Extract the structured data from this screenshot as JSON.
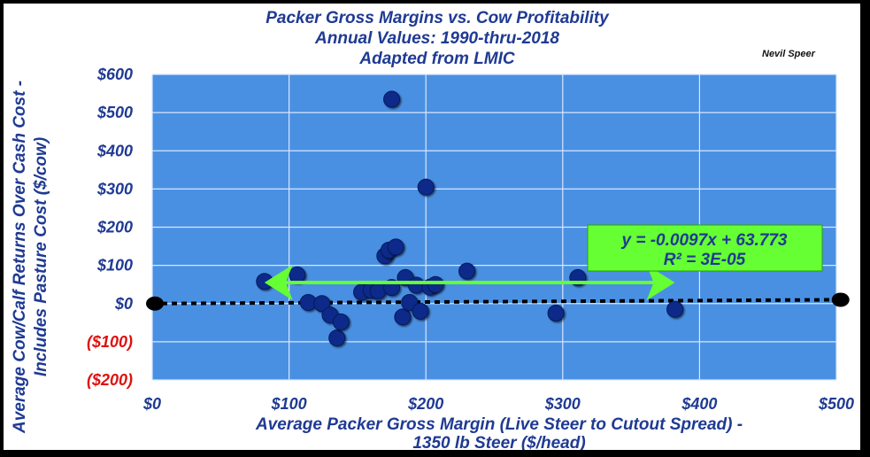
{
  "chart_data": {
    "type": "scatter",
    "title": [
      "Packer Gross Margins vs. Cow Profitability",
      "Annual Values:  1990-thru-2018",
      "Adapted from LMIC"
    ],
    "credit": "Nevil Speer",
    "xlabel": [
      "Average Packer Gross Margin (Live Steer to Cutout Spread) -",
      "1350 lb Steer ($/head)"
    ],
    "ylabel": [
      "Average Cow/Calf Returns Over Cash Cost -",
      "Includes Pasture Cost ($/cow)"
    ],
    "xlim": [
      0,
      500
    ],
    "ylim": [
      -200,
      600
    ],
    "x_ticks": [
      {
        "value": 0,
        "label": "$0"
      },
      {
        "value": 100,
        "label": "$100"
      },
      {
        "value": 200,
        "label": "$200"
      },
      {
        "value": 300,
        "label": "$300"
      },
      {
        "value": 400,
        "label": "$400"
      },
      {
        "value": 500,
        "label": "$500"
      }
    ],
    "y_ticks": [
      {
        "value": 600,
        "label": "$600"
      },
      {
        "value": 500,
        "label": "$500"
      },
      {
        "value": 400,
        "label": "$400"
      },
      {
        "value": 300,
        "label": "$300"
      },
      {
        "value": 200,
        "label": "$200"
      },
      {
        "value": 100,
        "label": "$100"
      },
      {
        "value": 0,
        "label": "$0"
      },
      {
        "value": -100,
        "label": "($100)"
      },
      {
        "value": -200,
        "label": "($200)"
      }
    ],
    "grid": true,
    "colors": {
      "plot_bg": "#4a90e2",
      "point": "#0e2a8a",
      "text": "#1f3a93",
      "negative_label": "#e01010",
      "arrow": "#66ff33",
      "trendline": "#000000",
      "equation_box": "#66ff33"
    },
    "points": [
      {
        "x": 82,
        "y": 58
      },
      {
        "x": 106,
        "y": 75
      },
      {
        "x": 114,
        "y": 3
      },
      {
        "x": 124,
        "y": 0
      },
      {
        "x": 130,
        "y": -30
      },
      {
        "x": 135,
        "y": -90
      },
      {
        "x": 138,
        "y": -48
      },
      {
        "x": 153,
        "y": 30
      },
      {
        "x": 160,
        "y": 35
      },
      {
        "x": 165,
        "y": 33
      },
      {
        "x": 170,
        "y": 125
      },
      {
        "x": 173,
        "y": 140
      },
      {
        "x": 175,
        "y": 42
      },
      {
        "x": 175,
        "y": 535
      },
      {
        "x": 178,
        "y": 148
      },
      {
        "x": 183,
        "y": -35
      },
      {
        "x": 185,
        "y": 68
      },
      {
        "x": 188,
        "y": 3
      },
      {
        "x": 193,
        "y": 48
      },
      {
        "x": 196,
        "y": -20
      },
      {
        "x": 200,
        "y": 305
      },
      {
        "x": 203,
        "y": 43
      },
      {
        "x": 207,
        "y": 50
      },
      {
        "x": 230,
        "y": 85
      },
      {
        "x": 295,
        "y": -25
      },
      {
        "x": 311,
        "y": 68
      },
      {
        "x": 382,
        "y": -15
      }
    ],
    "trendline": {
      "equation": "y = -0.0097x + 63.773",
      "r2": "R² = 3E-05",
      "slope": -0.0097,
      "intercept": 63.773
    },
    "annotations": {
      "range_arrow": {
        "x_start": 82,
        "x_end": 382,
        "y": 55
      },
      "endpoints": [
        {
          "x": 0,
          "y": 0
        },
        {
          "x": 505,
          "y": 10
        }
      ]
    }
  }
}
